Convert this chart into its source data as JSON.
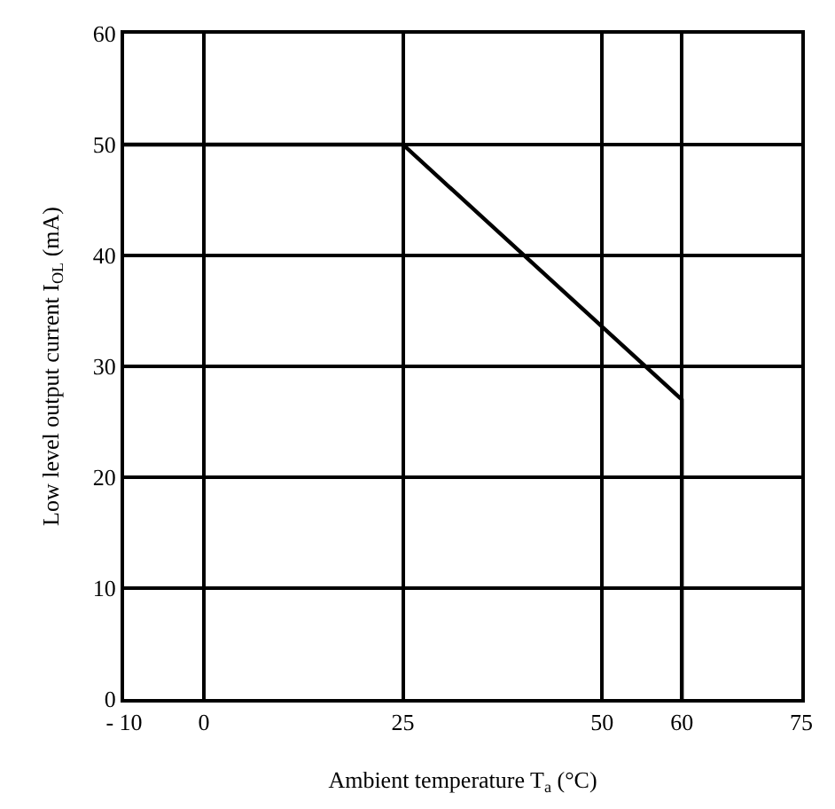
{
  "chart_data": {
    "type": "line",
    "xlabel": "Ambient temperature T$_{a}$ (°C)",
    "ylabel": "Low level output current I$_{OL}$ (mA)",
    "x": [
      -10,
      25,
      60,
      60
    ],
    "series": [
      {
        "color": "#000000",
        "values": [
          50,
          50,
          27,
          0
        ]
      }
    ],
    "xlim": [
      -10,
      75
    ],
    "xticks": [
      {
        "value": -10,
        "label": "- 10"
      },
      0,
      25,
      50,
      60,
      75
    ],
    "ylim": [
      0,
      60
    ],
    "yticks": [
      0,
      10,
      20,
      30,
      40,
      50,
      60
    ],
    "grid": true,
    "marker": "none",
    "line_style": "solid"
  }
}
